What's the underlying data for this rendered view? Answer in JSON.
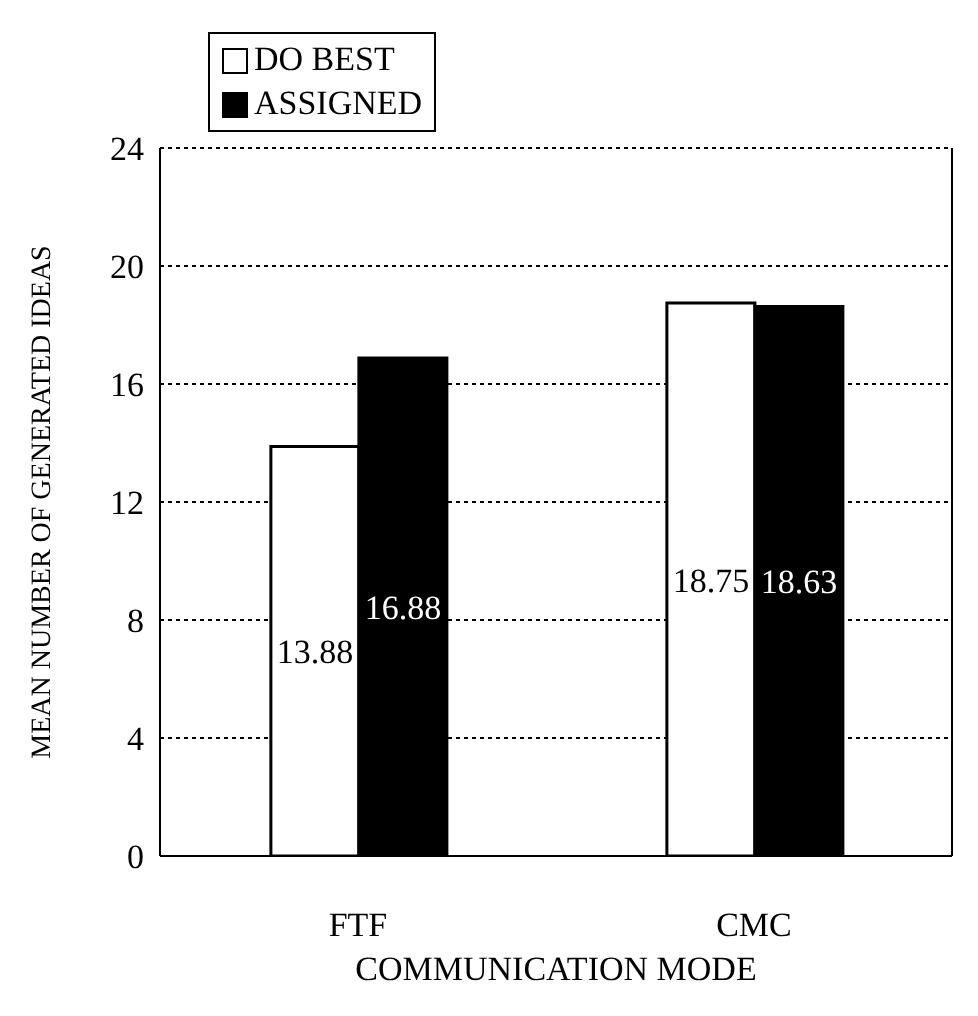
{
  "chart_data": {
    "type": "bar",
    "xlabel": "COMMUNICATION MODE",
    "ylabel": "MEAN NUMBER OF GENERATED IDEAS",
    "categories": [
      "FTF",
      "CMC"
    ],
    "series": [
      {
        "name": "DO BEST",
        "color": "#ffffff",
        "values": [
          13.88,
          18.75
        ]
      },
      {
        "name": "ASSIGNED",
        "color": "#000000",
        "values": [
          16.88,
          18.63
        ]
      }
    ],
    "ylim": [
      0,
      24
    ],
    "yticks": [
      0,
      4,
      8,
      12,
      16,
      20,
      24
    ],
    "grid": "y",
    "legend": "top left",
    "data_labels": true
  }
}
